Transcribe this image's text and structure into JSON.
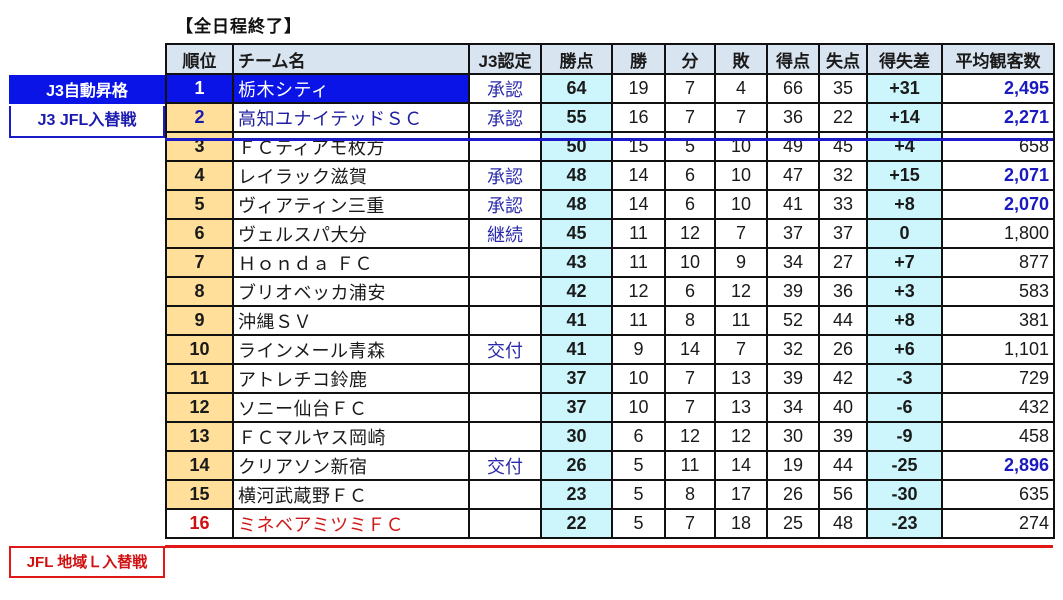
{
  "title": "【全日程終了】",
  "side_labels": {
    "auto_promotion": "J3自動昇格",
    "j3_jfl_playoff": "J3 JFL入替戦",
    "jfl_regional_playoff": "JFL 地域Ｌ入替戦"
  },
  "columns": [
    "順位",
    "チーム名",
    "J3認定",
    "勝点",
    "勝",
    "分",
    "敗",
    "得点",
    "失点",
    "得失差",
    "平均観客数"
  ],
  "colors": {
    "promotion_blue": "#0a14e6",
    "relegation_red": "#e01818",
    "rank_bg": "#ffdf9a",
    "points_bg": "#ccf6fb",
    "header_bg": "#d9e4f1",
    "highlight_attendance": "#1a1ac0"
  },
  "rows": [
    {
      "rank": "1",
      "team": "栃木シティ",
      "j3": "承認",
      "pts": "64",
      "w": "19",
      "d": "7",
      "l": "4",
      "gf": "66",
      "ga": "35",
      "gd": "+31",
      "att": "2,495",
      "att_hl": true
    },
    {
      "rank": "2",
      "team": "高知ユナイテッドＳＣ",
      "j3": "承認",
      "pts": "55",
      "w": "16",
      "d": "7",
      "l": "7",
      "gf": "36",
      "ga": "22",
      "gd": "+14",
      "att": "2,271",
      "att_hl": true
    },
    {
      "rank": "3",
      "team": "ＦＣティアモ枚方",
      "j3": "",
      "pts": "50",
      "w": "15",
      "d": "5",
      "l": "10",
      "gf": "49",
      "ga": "45",
      "gd": "+4",
      "att": "658",
      "att_hl": false
    },
    {
      "rank": "4",
      "team": "レイラック滋賀",
      "j3": "承認",
      "pts": "48",
      "w": "14",
      "d": "6",
      "l": "10",
      "gf": "47",
      "ga": "32",
      "gd": "+15",
      "att": "2,071",
      "att_hl": true
    },
    {
      "rank": "5",
      "team": "ヴィアティン三重",
      "j3": "承認",
      "pts": "48",
      "w": "14",
      "d": "6",
      "l": "10",
      "gf": "41",
      "ga": "33",
      "gd": "+8",
      "att": "2,070",
      "att_hl": true
    },
    {
      "rank": "6",
      "team": "ヴェルスパ大分",
      "j3": "継続",
      "pts": "45",
      "w": "11",
      "d": "12",
      "l": "7",
      "gf": "37",
      "ga": "37",
      "gd": "0",
      "att": "1,800",
      "att_hl": false
    },
    {
      "rank": "7",
      "team": "Ｈｏｎｄａ ＦＣ",
      "j3": "",
      "pts": "43",
      "w": "11",
      "d": "10",
      "l": "9",
      "gf": "34",
      "ga": "27",
      "gd": "+7",
      "att": "877",
      "att_hl": false
    },
    {
      "rank": "8",
      "team": "ブリオベッカ浦安",
      "j3": "",
      "pts": "42",
      "w": "12",
      "d": "6",
      "l": "12",
      "gf": "39",
      "ga": "36",
      "gd": "+3",
      "att": "583",
      "att_hl": false
    },
    {
      "rank": "9",
      "team": "沖縄ＳＶ",
      "j3": "",
      "pts": "41",
      "w": "11",
      "d": "8",
      "l": "11",
      "gf": "52",
      "ga": "44",
      "gd": "+8",
      "att": "381",
      "att_hl": false
    },
    {
      "rank": "10",
      "team": "ラインメール青森",
      "j3": "交付",
      "pts": "41",
      "w": "9",
      "d": "14",
      "l": "7",
      "gf": "32",
      "ga": "26",
      "gd": "+6",
      "att": "1,101",
      "att_hl": false
    },
    {
      "rank": "11",
      "team": "アトレチコ鈴鹿",
      "j3": "",
      "pts": "37",
      "w": "10",
      "d": "7",
      "l": "13",
      "gf": "39",
      "ga": "42",
      "gd": "-3",
      "att": "729",
      "att_hl": false
    },
    {
      "rank": "12",
      "team": "ソニー仙台ＦＣ",
      "j3": "",
      "pts": "37",
      "w": "10",
      "d": "7",
      "l": "13",
      "gf": "34",
      "ga": "40",
      "gd": "-6",
      "att": "432",
      "att_hl": false
    },
    {
      "rank": "13",
      "team": "ＦＣマルヤス岡崎",
      "j3": "",
      "pts": "30",
      "w": "6",
      "d": "12",
      "l": "12",
      "gf": "30",
      "ga": "39",
      "gd": "-9",
      "att": "458",
      "att_hl": false
    },
    {
      "rank": "14",
      "team": "クリアソン新宿",
      "j3": "交付",
      "pts": "26",
      "w": "5",
      "d": "11",
      "l": "14",
      "gf": "19",
      "ga": "44",
      "gd": "-25",
      "att": "2,896",
      "att_hl": true
    },
    {
      "rank": "15",
      "team": "横河武蔵野ＦＣ",
      "j3": "",
      "pts": "23",
      "w": "5",
      "d": "8",
      "l": "17",
      "gf": "26",
      "ga": "56",
      "gd": "-30",
      "att": "635",
      "att_hl": false
    },
    {
      "rank": "16",
      "team": "ミネベアミツミＦＣ",
      "j3": "",
      "pts": "22",
      "w": "5",
      "d": "7",
      "l": "18",
      "gf": "25",
      "ga": "48",
      "gd": "-23",
      "att": "274",
      "att_hl": false
    }
  ]
}
